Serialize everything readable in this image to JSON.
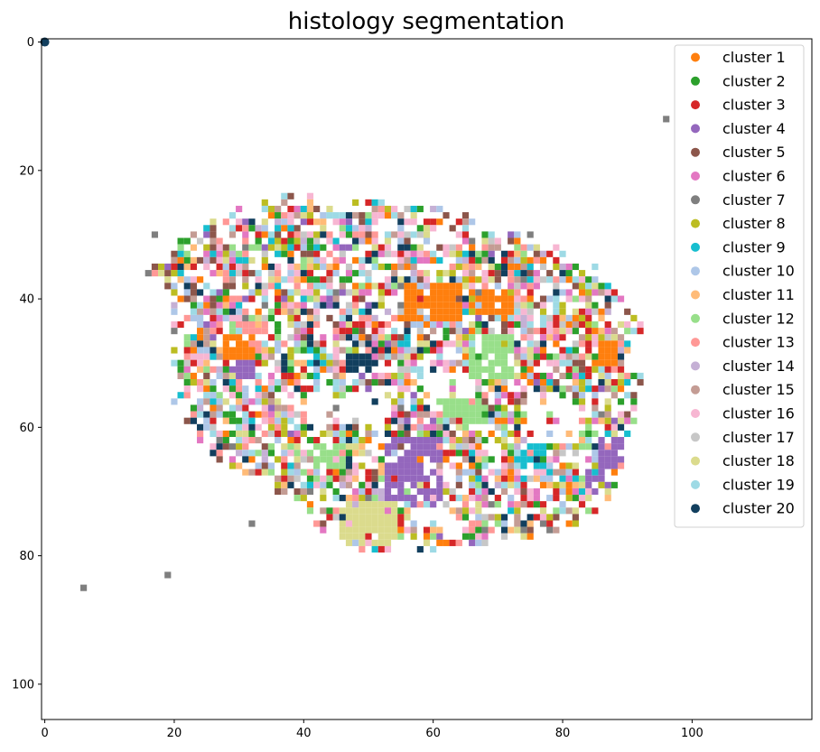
{
  "chart_data": {
    "type": "scatter",
    "title": "histology segmentation",
    "xlabel": "",
    "ylabel": "",
    "xlim": [
      -0.5,
      118.5
    ],
    "ylim": [
      105.5,
      -0.5
    ],
    "y_inverted": true,
    "grid": false,
    "legend_position": "top-right",
    "xticks": [
      0,
      20,
      40,
      60,
      80,
      100
    ],
    "yticks": [
      0,
      20,
      40,
      60,
      80,
      100
    ],
    "tissue_region": {
      "description_outline": [
        [
          16,
          35
        ],
        [
          22,
          31
        ],
        [
          30,
          26
        ],
        [
          40,
          24
        ],
        [
          50,
          25
        ],
        [
          60,
          26
        ],
        [
          68,
          28
        ],
        [
          76,
          30
        ],
        [
          82,
          33
        ],
        [
          88,
          37
        ],
        [
          93,
          42
        ],
        [
          93,
          50
        ],
        [
          92,
          58
        ],
        [
          90,
          66
        ],
        [
          88,
          72
        ],
        [
          82,
          76
        ],
        [
          74,
          78
        ],
        [
          66,
          79
        ],
        [
          58,
          80
        ],
        [
          50,
          80
        ],
        [
          44,
          77
        ],
        [
          40,
          73
        ],
        [
          34,
          69
        ],
        [
          28,
          66
        ],
        [
          24,
          62
        ],
        [
          20,
          56
        ],
        [
          20,
          48
        ],
        [
          20,
          40
        ]
      ],
      "voids": [
        {
          "cx": 47,
          "cy": 57,
          "rx": 7,
          "ry": 3
        },
        {
          "cx": 62,
          "cy": 54,
          "rx": 5,
          "ry": 3
        },
        {
          "cx": 78,
          "cy": 59,
          "rx": 5,
          "ry": 4
        },
        {
          "cx": 60,
          "cy": 74,
          "rx": 4,
          "ry": 2
        }
      ]
    },
    "outliers": [
      {
        "x": 96,
        "y": 12,
        "cluster": 7
      },
      {
        "x": 19,
        "y": 83,
        "cluster": 7
      },
      {
        "x": 6,
        "y": 85,
        "cluster": 7
      },
      {
        "x": 32,
        "y": 75,
        "cluster": 7
      },
      {
        "x": 17,
        "y": 30,
        "cluster": 7
      },
      {
        "x": 16,
        "y": 36,
        "cluster": 7
      },
      {
        "x": 0,
        "y": 0,
        "cluster": 20,
        "marker": "circle"
      }
    ],
    "dominant_patches": [
      {
        "cluster": 1,
        "x0": 56,
        "x1": 64,
        "y0": 38,
        "y1": 43
      },
      {
        "cluster": 1,
        "x0": 66,
        "x1": 72,
        "y0": 39,
        "y1": 42
      },
      {
        "cluster": 1,
        "x0": 28,
        "x1": 32,
        "y0": 46,
        "y1": 49
      },
      {
        "cluster": 1,
        "x0": 85,
        "x1": 88,
        "y0": 47,
        "y1": 50
      },
      {
        "cluster": 4,
        "x0": 53,
        "x1": 61,
        "y0": 62,
        "y1": 71
      },
      {
        "cluster": 4,
        "x0": 29,
        "x1": 32,
        "y0": 49,
        "y1": 52
      },
      {
        "cluster": 4,
        "x0": 86,
        "x1": 89,
        "y0": 62,
        "y1": 66
      },
      {
        "cluster": 4,
        "x0": 84,
        "x1": 86,
        "y0": 67,
        "y1": 70
      },
      {
        "cluster": 12,
        "x0": 66,
        "x1": 72,
        "y0": 46,
        "y1": 52
      },
      {
        "cluster": 12,
        "x0": 61,
        "x1": 68,
        "y0": 56,
        "y1": 59
      },
      {
        "cluster": 12,
        "x0": 42,
        "x1": 46,
        "y0": 63,
        "y1": 66
      },
      {
        "cluster": 18,
        "x0": 46,
        "x1": 54,
        "y0": 72,
        "y1": 78
      },
      {
        "cluster": 13,
        "x0": 30,
        "x1": 34,
        "y0": 44,
        "y1": 47
      },
      {
        "cluster": 9,
        "x0": 74,
        "x1": 77,
        "y0": 63,
        "y1": 66
      },
      {
        "cluster": 20,
        "x0": 47,
        "x1": 51,
        "y0": 49,
        "y1": 51
      }
    ],
    "series": [
      {
        "name": "cluster 1",
        "color": "#ff7f0e"
      },
      {
        "name": "cluster 2",
        "color": "#2ca02c"
      },
      {
        "name": "cluster 3",
        "color": "#d62728"
      },
      {
        "name": "cluster 4",
        "color": "#9467bd"
      },
      {
        "name": "cluster 5",
        "color": "#8c564b"
      },
      {
        "name": "cluster 6",
        "color": "#e377c2"
      },
      {
        "name": "cluster 7",
        "color": "#7f7f7f"
      },
      {
        "name": "cluster 8",
        "color": "#bcbd22"
      },
      {
        "name": "cluster 9",
        "color": "#17becf"
      },
      {
        "name": "cluster 10",
        "color": "#aec7e8"
      },
      {
        "name": "cluster 11",
        "color": "#ffbb78"
      },
      {
        "name": "cluster 12",
        "color": "#98df8a"
      },
      {
        "name": "cluster 13",
        "color": "#ff9896"
      },
      {
        "name": "cluster 14",
        "color": "#c5b0d5"
      },
      {
        "name": "cluster 15",
        "color": "#c49c94"
      },
      {
        "name": "cluster 16",
        "color": "#f7b6d2"
      },
      {
        "name": "cluster 17",
        "color": "#c7c7c7"
      },
      {
        "name": "cluster 18",
        "color": "#dbdb8d"
      },
      {
        "name": "cluster 19",
        "color": "#9edae5"
      },
      {
        "name": "cluster 20",
        "color": "#123f5e"
      }
    ]
  }
}
